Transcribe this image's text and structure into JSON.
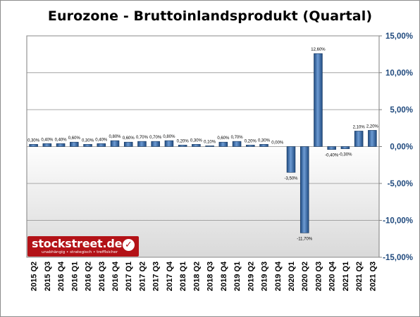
{
  "chart_data": {
    "type": "bar",
    "title": "Eurozone - Bruttoinlandsprodukt (Quartal)",
    "categories": [
      "2015 Q2",
      "2015 Q3",
      "2016 Q4",
      "2016 Q1",
      "2016 Q2",
      "2016 Q3",
      "2016 Q4",
      "2017 Q1",
      "2017 Q2",
      "2017 Q3",
      "2017 Q4",
      "2018 Q1",
      "2018 Q2",
      "2018 Q3",
      "2018 Q4",
      "2019 Q1",
      "2019 Q2",
      "2019 Q3",
      "2019 Q4",
      "2020 Q1",
      "2020 Q2",
      "2020 Q3",
      "2020 Q4",
      "2021 Q1",
      "2021 Q2",
      "2021 Q3"
    ],
    "values": [
      0.3,
      0.4,
      0.4,
      0.6,
      0.3,
      0.4,
      0.8,
      0.6,
      0.7,
      0.7,
      0.8,
      0.2,
      0.3,
      0.1,
      0.6,
      0.7,
      0.2,
      0.3,
      0.0,
      -3.5,
      -11.7,
      12.6,
      -0.4,
      -0.3,
      2.1,
      2.2
    ],
    "data_labels": [
      "0,30%",
      "0,40%",
      "0,40%",
      "0,60%",
      "0,30%",
      "0,40%",
      "0,80%",
      "0,60%",
      "0,70%",
      "0,70%",
      "0,80%",
      "0,20%",
      "0,30%",
      "0,10%",
      "0,60%",
      "0,70%",
      "0,20%",
      "0,30%",
      "0,00%",
      "-3,50%",
      "-11,70%",
      "12,60%",
      "-0,40%",
      "-0,30%",
      "2,10%",
      "2,20%"
    ],
    "ylim": [
      -15,
      15
    ],
    "yticks": [
      15,
      10,
      5,
      0,
      -5,
      -10,
      -15
    ],
    "ytick_labels": [
      "15,00%",
      "10,00%",
      "5,00%",
      "0,00%",
      "-5,00%",
      "-10,00%",
      "-15,00%"
    ],
    "yaxis_position": "right",
    "grid": true,
    "bar_color": "#2e5f9e",
    "background_top": "#ffffff",
    "background_bottom": "#d9d9d9",
    "tick_label_color": "#1f497d"
  },
  "logo": {
    "name": "stockstreet.de",
    "tagline": "unabhängig • strategisch • trefflsicher",
    "check": "✓"
  }
}
